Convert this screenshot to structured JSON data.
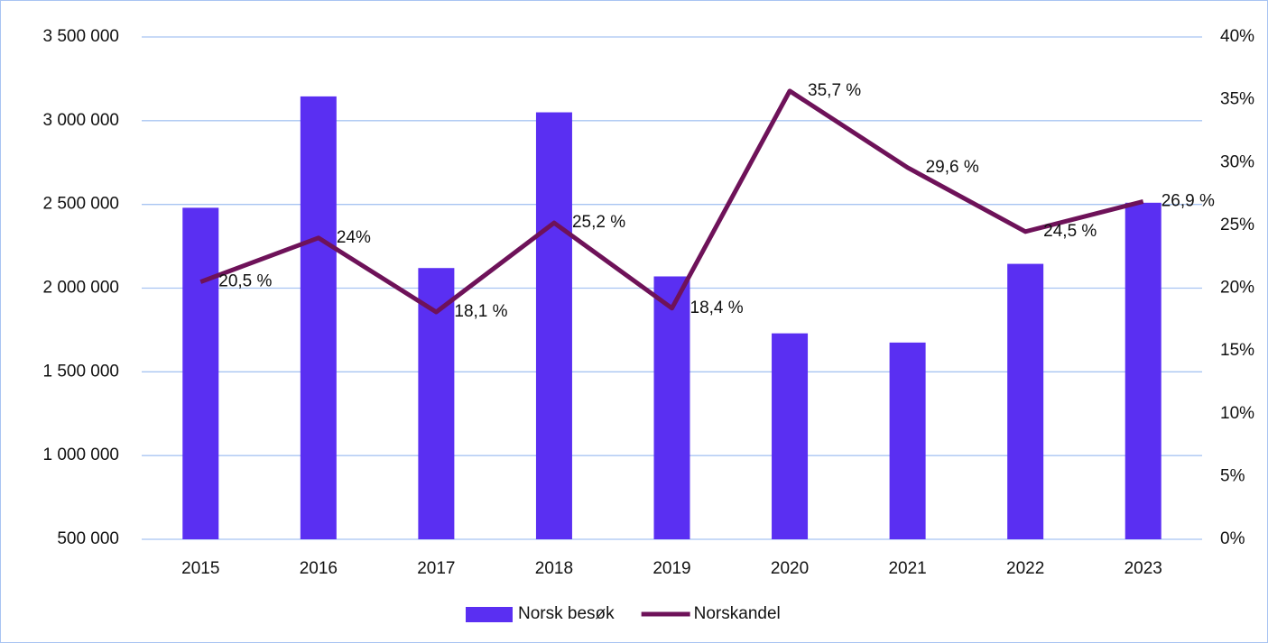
{
  "chart_data": {
    "type": "bar_line",
    "categories": [
      "2015",
      "2016",
      "2017",
      "2018",
      "2019",
      "2020",
      "2021",
      "2022",
      "2023"
    ],
    "series": [
      {
        "name": "Norsk besøk",
        "type": "bar",
        "color": "#5a2ff2",
        "axis": "y",
        "values": [
          2480000,
          3145000,
          2120000,
          3050000,
          2070000,
          1730000,
          1675000,
          2145000,
          2510000
        ]
      },
      {
        "name": "Norskandel",
        "type": "line",
        "color": "#6e1259",
        "axis": "y2",
        "values": [
          20.5,
          24,
          18.1,
          25.2,
          18.4,
          35.7,
          29.6,
          24.5,
          26.9
        ],
        "value_labels": [
          "20,5 %",
          "24%",
          "18,1 %",
          "25,2 %",
          "18,4 %",
          "35,7 %",
          "29,6 %",
          "24,5 %",
          "26,9 %"
        ]
      }
    ],
    "ylim": [
      500000,
      3500000
    ],
    "yticks": [
      {
        "value": 500000,
        "label": "500 000"
      },
      {
        "value": 1000000,
        "label": "1 000 000"
      },
      {
        "value": 1500000,
        "label": "1 500 000"
      },
      {
        "value": 2000000,
        "label": "2 000 000"
      },
      {
        "value": 2500000,
        "label": "2 500 000"
      },
      {
        "value": 3000000,
        "label": "3 000 000"
      },
      {
        "value": 3500000,
        "label": "3 500 000"
      }
    ],
    "y2lim": [
      0,
      40
    ],
    "y2ticks": [
      {
        "value": 0,
        "label": "0%"
      },
      {
        "value": 5,
        "label": "5%"
      },
      {
        "value": 10,
        "label": "10%"
      },
      {
        "value": 15,
        "label": "15%"
      },
      {
        "value": 20,
        "label": "20%"
      },
      {
        "value": 25,
        "label": "25%"
      },
      {
        "value": 30,
        "label": "30%"
      },
      {
        "value": 35,
        "label": "35%"
      },
      {
        "value": 40,
        "label": "40%"
      }
    ],
    "grid": true,
    "legend": "bottom"
  }
}
